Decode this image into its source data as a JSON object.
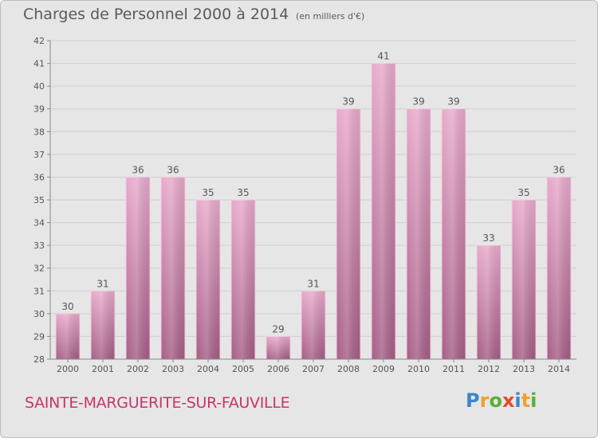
{
  "title": "Charges de Personnel 2000 à 2014",
  "unit_note": "(en milliers d'€)",
  "commune": "SAINTE-MARGUERITE-SUR-FAUVILLE",
  "logo": {
    "text": "Proxiti",
    "letters": [
      {
        "ch": "P",
        "color": "#3a86c8"
      },
      {
        "ch": "r",
        "color": "#f0a030"
      },
      {
        "ch": "o",
        "color": "#5aae3a"
      },
      {
        "ch": "x",
        "color": "#e24a2a"
      },
      {
        "ch": "i",
        "color": "#3a86c8"
      },
      {
        "ch": "t",
        "color": "#f0a030"
      },
      {
        "ch": "i",
        "color": "#5aae3a"
      }
    ]
  },
  "colors": {
    "bar_top": "#e8aacb",
    "bar_bottom": "#a65e86",
    "grid": "#cfcfcf",
    "text": "#555555"
  },
  "chart_data": {
    "type": "bar",
    "categories": [
      "2000",
      "2001",
      "2002",
      "2003",
      "2004",
      "2005",
      "2006",
      "2007",
      "2008",
      "2009",
      "2010",
      "2011",
      "2012",
      "2013",
      "2014"
    ],
    "values": [
      30,
      31,
      36,
      36,
      35,
      35,
      29,
      31,
      39,
      41,
      39,
      39,
      33,
      35,
      36
    ],
    "ylim": [
      28,
      42
    ],
    "yticks": [
      "28",
      "29",
      "30",
      "31",
      "32",
      "33",
      "34",
      "35",
      "36",
      "37",
      "38",
      "39",
      "40",
      "41",
      "42"
    ],
    "grid": true,
    "legend": "none"
  }
}
